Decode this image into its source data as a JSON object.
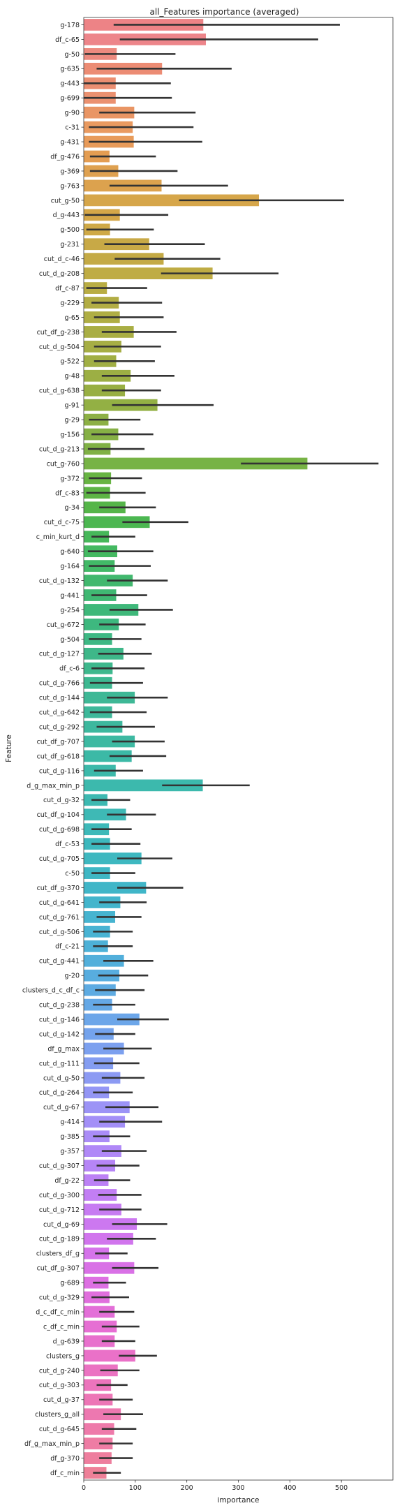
{
  "chart_data": {
    "type": "bar",
    "orientation": "horizontal",
    "title": "all_Features importance (averaged)",
    "xlabel": "importance",
    "ylabel": "Feature",
    "xlim": [
      0,
      600
    ],
    "xticks": [
      0,
      100,
      200,
      300,
      400,
      500
    ],
    "grid": false,
    "error_bar_color": "#333333",
    "categories": [
      "g-178",
      "df_c-65",
      "g-50",
      "g-635",
      "g-443",
      "g-699",
      "g-90",
      "c-31",
      "g-431",
      "df_g-476",
      "g-369",
      "g-763",
      "cut_g-50",
      "d_g-443",
      "g-500",
      "g-231",
      "cut_d_c-46",
      "cut_d_g-208",
      "df_c-87",
      "g-229",
      "g-65",
      "cut_df_g-238",
      "cut_d_g-504",
      "g-522",
      "g-48",
      "cut_d_g-638",
      "g-91",
      "g-29",
      "g-156",
      "cut_d_g-213",
      "cut_g-760",
      "g-372",
      "df_c-83",
      "g-34",
      "cut_d_c-75",
      "c_min_kurt_d",
      "g-640",
      "g-164",
      "cut_d_g-132",
      "g-441",
      "g-254",
      "cut_g-672",
      "g-504",
      "cut_d_g-127",
      "df_c-6",
      "cut_d_g-766",
      "cut_d_g-144",
      "cut_d_g-642",
      "cut_d_g-292",
      "cut_df_g-707",
      "cut_df_g-618",
      "cut_d_g-116",
      "d_g_max_min_p",
      "cut_d_g-32",
      "cut_df_g-104",
      "cut_d_g-698",
      "df_c-53",
      "cut_d_g-705",
      "c-50",
      "cut_df_g-370",
      "cut_d_g-641",
      "cut_d_g-761",
      "cut_d_g-506",
      "df_c-21",
      "cut_d_g-441",
      "g-20",
      "clusters_d_c_df_c",
      "cut_d_g-238",
      "cut_d_g-146",
      "cut_d_g-142",
      "df_g_max",
      "cut_d_g-111",
      "cut_d_g-50",
      "cut_d_g-264",
      "cut_d_g-67",
      "g-414",
      "g-385",
      "g-357",
      "cut_d_g-307",
      "df_g-22",
      "cut_d_g-300",
      "cut_d_g-712",
      "cut_d_g-69",
      "cut_d_g-189",
      "clusters_df_g",
      "cut_df_g-307",
      "g-689",
      "cut_d_g-329",
      "d_c_df_c_min",
      "c_df_c_min",
      "d_g-639",
      "clusters_g",
      "cut_d_g-240",
      "cut_d_g-303",
      "cut_d_g-37",
      "clusters_g_all",
      "cut_d_g-645",
      "df_g_max_min_p",
      "df_g-370",
      "df_c_min"
    ],
    "values": [
      232,
      237,
      64,
      152,
      62,
      62,
      98,
      95,
      97,
      50,
      67,
      151,
      340,
      70,
      51,
      127,
      155,
      250,
      45,
      68,
      70,
      97,
      73,
      63,
      91,
      80,
      143,
      48,
      67,
      52,
      434,
      53,
      51,
      81,
      128,
      49,
      65,
      60,
      95,
      63,
      106,
      68,
      55,
      77,
      56,
      55,
      99,
      55,
      75,
      99,
      93,
      62,
      231,
      46,
      82,
      49,
      51,
      112,
      51,
      121,
      71,
      61,
      51,
      47,
      78,
      69,
      62,
      55,
      108,
      58,
      78,
      57,
      71,
      49,
      89,
      80,
      50,
      73,
      61,
      48,
      64,
      73,
      103,
      96,
      49,
      98,
      48,
      50,
      60,
      64,
      60,
      100,
      66,
      53,
      56,
      72,
      59,
      56,
      54,
      44
    ],
    "errors": [
      [
        58,
        497
      ],
      [
        70,
        455
      ],
      [
        2,
        178
      ],
      [
        25,
        287
      ],
      [
        0,
        169
      ],
      [
        0,
        171
      ],
      [
        30,
        217
      ],
      [
        10,
        213
      ],
      [
        10,
        230
      ],
      [
        12,
        140
      ],
      [
        12,
        182
      ],
      [
        50,
        280
      ],
      [
        185,
        505
      ],
      [
        2,
        164
      ],
      [
        5,
        136
      ],
      [
        40,
        235
      ],
      [
        60,
        265
      ],
      [
        150,
        378
      ],
      [
        5,
        123
      ],
      [
        15,
        152
      ],
      [
        20,
        155
      ],
      [
        35,
        180
      ],
      [
        20,
        150
      ],
      [
        20,
        138
      ],
      [
        35,
        176
      ],
      [
        35,
        150
      ],
      [
        55,
        252
      ],
      [
        10,
        110
      ],
      [
        15,
        135
      ],
      [
        8,
        118
      ],
      [
        305,
        572
      ],
      [
        10,
        113
      ],
      [
        5,
        120
      ],
      [
        30,
        140
      ],
      [
        75,
        203
      ],
      [
        15,
        100
      ],
      [
        8,
        135
      ],
      [
        10,
        130
      ],
      [
        45,
        163
      ],
      [
        15,
        123
      ],
      [
        50,
        173
      ],
      [
        30,
        120
      ],
      [
        10,
        112
      ],
      [
        28,
        132
      ],
      [
        15,
        118
      ],
      [
        12,
        115
      ],
      [
        45,
        163
      ],
      [
        12,
        122
      ],
      [
        25,
        138
      ],
      [
        55,
        157
      ],
      [
        50,
        160
      ],
      [
        20,
        115
      ],
      [
        152,
        322
      ],
      [
        15,
        90
      ],
      [
        45,
        140
      ],
      [
        15,
        93
      ],
      [
        15,
        110
      ],
      [
        65,
        172
      ],
      [
        15,
        100
      ],
      [
        65,
        193
      ],
      [
        30,
        122
      ],
      [
        25,
        112
      ],
      [
        18,
        95
      ],
      [
        18,
        95
      ],
      [
        38,
        135
      ],
      [
        28,
        125
      ],
      [
        22,
        118
      ],
      [
        18,
        100
      ],
      [
        65,
        165
      ],
      [
        22,
        100
      ],
      [
        38,
        132
      ],
      [
        20,
        108
      ],
      [
        35,
        118
      ],
      [
        18,
        95
      ],
      [
        42,
        145
      ],
      [
        30,
        152
      ],
      [
        18,
        90
      ],
      [
        35,
        122
      ],
      [
        25,
        108
      ],
      [
        20,
        90
      ],
      [
        28,
        112
      ],
      [
        30,
        112
      ],
      [
        55,
        162
      ],
      [
        45,
        140
      ],
      [
        22,
        85
      ],
      [
        55,
        145
      ],
      [
        18,
        82
      ],
      [
        15,
        88
      ],
      [
        30,
        98
      ],
      [
        35,
        108
      ],
      [
        35,
        100
      ],
      [
        68,
        142
      ],
      [
        32,
        108
      ],
      [
        25,
        85
      ],
      [
        30,
        95
      ],
      [
        38,
        115
      ],
      [
        35,
        102
      ],
      [
        30,
        95
      ],
      [
        30,
        95
      ],
      [
        18,
        72
      ]
    ],
    "colors": [
      "#ed8386",
      "#ed858a",
      "#ec8a7f",
      "#ec8c74",
      "#eb8e71",
      "#eb9170",
      "#e99564",
      "#e99a60",
      "#e89b5a",
      "#e49d52",
      "#dfa150",
      "#dca24e",
      "#d6a64a",
      "#d5a748",
      "#cfa947",
      "#c8a946",
      "#c4aa45",
      "#bfac44",
      "#b9ad44",
      "#b2ad44",
      "#afae44",
      "#a9ae44",
      "#a6ae44",
      "#a1af44",
      "#9caf44",
      "#98af43",
      "#93b044",
      "#8db045",
      "#86b045",
      "#80b145",
      "#77b345",
      "#68b443",
      "#5db445",
      "#55b549",
      "#4cb751",
      "#46b85a",
      "#44b961",
      "#42b967",
      "#41b86e",
      "#40b873",
      "#3fb87a",
      "#3eb87f",
      "#3eb884",
      "#3eb789",
      "#3eb88d",
      "#3db891",
      "#3eb896",
      "#3db89a",
      "#3db89e",
      "#3db9a2",
      "#3cb9a6",
      "#3cb9aa",
      "#3cb9ad",
      "#3db9b1",
      "#3eb9b5",
      "#3db9b9",
      "#3db8bd",
      "#3eb8c0",
      "#3fb7c4",
      "#40b6c8",
      "#43b5cc",
      "#46b4d0",
      "#49b3d3",
      "#4db1d7",
      "#52afdb",
      "#58addf",
      "#5eabe2",
      "#65a8e6",
      "#6ca6e9",
      "#74a3ec",
      "#7ca0ef",
      "#849df1",
      "#8c9af3",
      "#9496f5",
      "#9c93f6",
      "#a38ff7",
      "#aa8cf7",
      "#b088f7",
      "#b685f6",
      "#bc81f5",
      "#c27ef4",
      "#c77bf2",
      "#cc78f0",
      "#d175ed",
      "#d573ea",
      "#d971e6",
      "#dd70e2",
      "#e06fdd",
      "#e36fd8",
      "#e66fd3",
      "#e870cd",
      "#ea71c8",
      "#eb73c2",
      "#ec74bc",
      "#ed76b6",
      "#ed78b0",
      "#ee7aaa",
      "#ee7ca4",
      "#ee7e9e",
      "#ee8098"
    ]
  }
}
